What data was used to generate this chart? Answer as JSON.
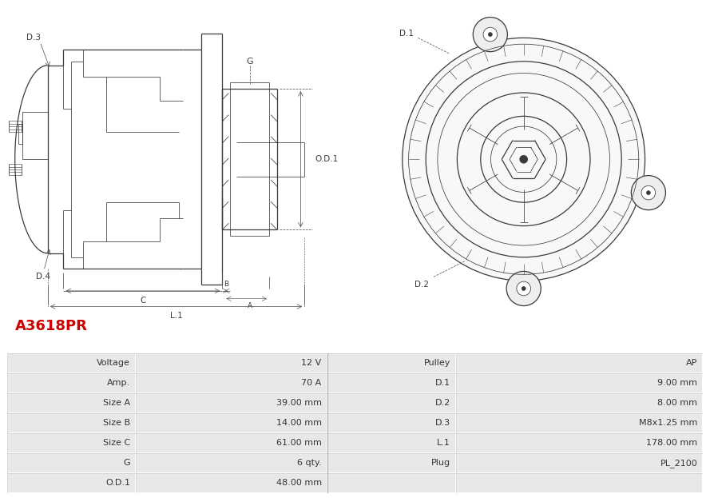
{
  "title": "A3618PR",
  "title_color": "#cc0000",
  "background_color": "#ffffff",
  "table_row_bg": "#e8e8e8",
  "table_line_color": "#cccccc",
  "col_main": "#3a3a3a",
  "col_dim": "#555555",
  "rows": [
    [
      "Voltage",
      "12 V",
      "Pulley",
      "AP"
    ],
    [
      "Amp.",
      "70 A",
      "D.1",
      "9.00 mm"
    ],
    [
      "Size A",
      "39.00 mm",
      "D.2",
      "8.00 mm"
    ],
    [
      "Size B",
      "14.00 mm",
      "D.3",
      "M8x1.25 mm"
    ],
    [
      "Size C",
      "61.00 mm",
      "L.1",
      "178.00 mm"
    ],
    [
      "G",
      "6 qty.",
      "Plug",
      "PL_2100"
    ],
    [
      "O.D.1",
      "48.00 mm",
      "",
      ""
    ]
  ],
  "col_bounds": [
    0.0,
    0.185,
    0.46,
    0.645,
    1.0
  ]
}
